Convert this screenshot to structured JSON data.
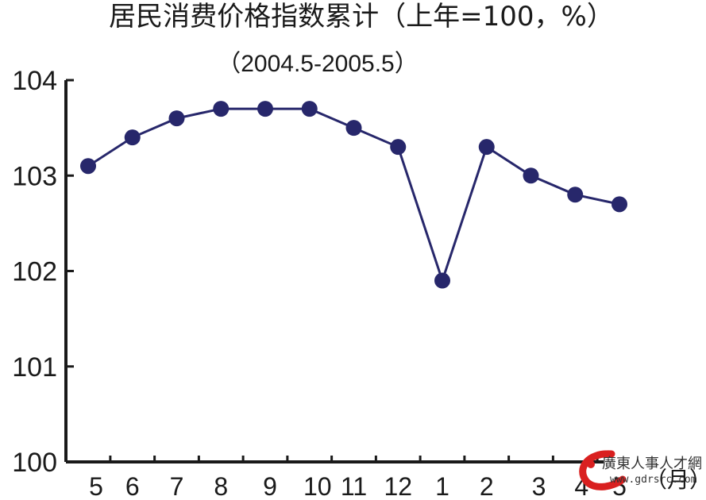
{
  "chart_data": {
    "type": "line",
    "title": "居民消费价格指数累计（上年=100，%）",
    "subtitle": "（2004.5-2005.5）",
    "xunit": "（月）",
    "categories": [
      "5",
      "6",
      "7",
      "8",
      "9",
      "10",
      "11",
      "12",
      "1",
      "2",
      "3",
      "4",
      "5"
    ],
    "series": [
      {
        "values": [
          103.1,
          103.4,
          103.6,
          103.7,
          103.7,
          103.7,
          103.5,
          103.3,
          101.9,
          103.3,
          103.0,
          102.8,
          102.7
        ]
      }
    ],
    "yticks": [
      "100",
      "101",
      "102",
      "103",
      "104"
    ],
    "ylim": [
      100,
      104
    ],
    "grid": false,
    "line_color": "#27276b",
    "marker_color": "#27276b"
  },
  "watermark": {
    "text": "廣東人事人才網",
    "url": "www.gdrsrc.com",
    "accent_color": "#d92020"
  }
}
